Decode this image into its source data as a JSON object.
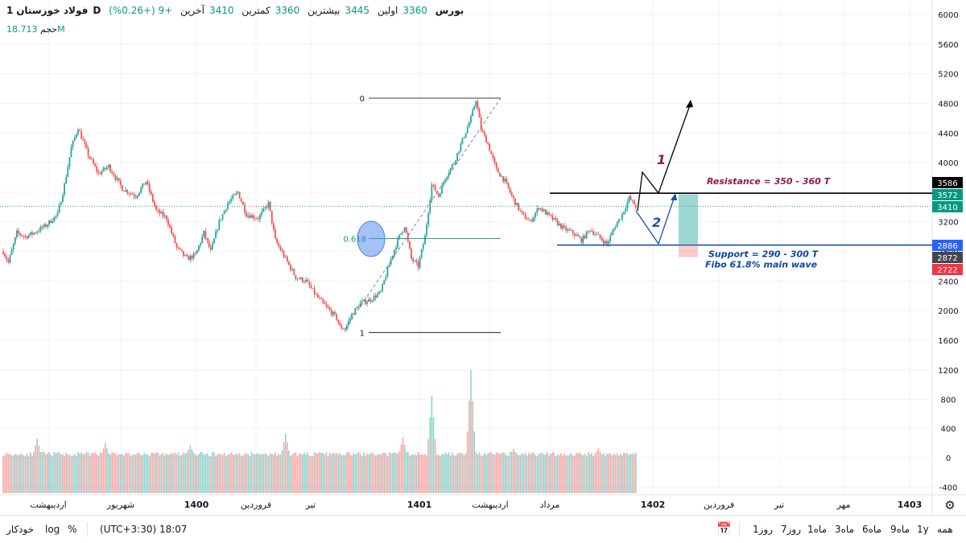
{
  "header": {
    "symbol": "فولاد خوزستان",
    "interval": "1D",
    "exchange": "بورس",
    "open_label": "اولین",
    "open_value": "3360",
    "high_label": "بیشترین",
    "high_value": "3445",
    "low_label": "کمترین",
    "low_value": "3360",
    "close_label": "آخرین",
    "close_value": "3410",
    "change": "+9 (+0.26%)",
    "volume_label": "حجم",
    "volume_value": "18.713M"
  },
  "chart_data": {
    "type": "candlestick",
    "price_axis": {
      "min": 1600,
      "max": 6200,
      "ticks": [
        1600,
        2000,
        2400,
        2800,
        3200,
        3600,
        4000,
        4400,
        4800,
        5200,
        5600,
        6000
      ]
    },
    "volume_axis": {
      "min": -400,
      "max": 1200,
      "ticks": [
        -400,
        0,
        400,
        800,
        1200
      ]
    },
    "time_labels": [
      "اردیبهشت",
      "شهریور",
      "1400",
      "فروردین",
      "تیر",
      "1401",
      "اردیبهشت",
      "مرداد",
      "1402",
      "فروردین",
      "تیر",
      "مهر",
      "1403"
    ],
    "price_trend": [
      [
        0,
        2800
      ],
      [
        3,
        2650
      ],
      [
        8,
        3050
      ],
      [
        13,
        3000
      ],
      [
        18,
        3050
      ],
      [
        25,
        3150
      ],
      [
        32,
        3300
      ],
      [
        36,
        3700
      ],
      [
        40,
        4200
      ],
      [
        44,
        4470
      ],
      [
        50,
        4100
      ],
      [
        56,
        3850
      ],
      [
        62,
        3950
      ],
      [
        70,
        3650
      ],
      [
        78,
        3550
      ],
      [
        84,
        3750
      ],
      [
        90,
        3350
      ],
      [
        96,
        3250
      ],
      [
        102,
        2850
      ],
      [
        108,
        2700
      ],
      [
        113,
        2750
      ],
      [
        118,
        3050
      ],
      [
        122,
        2800
      ],
      [
        127,
        3200
      ],
      [
        132,
        3450
      ],
      [
        138,
        3600
      ],
      [
        143,
        3300
      ],
      [
        150,
        3250
      ],
      [
        156,
        3450
      ],
      [
        160,
        2950
      ],
      [
        166,
        2700
      ],
      [
        172,
        2450
      ],
      [
        178,
        2400
      ],
      [
        184,
        2200
      ],
      [
        190,
        2050
      ],
      [
        196,
        1900
      ],
      [
        198,
        1780
      ],
      [
        201,
        1750
      ],
      [
        205,
        1950
      ],
      [
        210,
        2100
      ],
      [
        216,
        2150
      ],
      [
        222,
        2250
      ],
      [
        228,
        2700
      ],
      [
        232,
        2950
      ],
      [
        236,
        3150
      ],
      [
        240,
        2700
      ],
      [
        244,
        2600
      ],
      [
        248,
        3000
      ],
      [
        252,
        3700
      ],
      [
        256,
        3550
      ],
      [
        260,
        3800
      ],
      [
        265,
        4000
      ],
      [
        270,
        4300
      ],
      [
        275,
        4600
      ],
      [
        278,
        4850
      ],
      [
        281,
        4450
      ],
      [
        285,
        4250
      ],
      [
        290,
        3900
      ],
      [
        295,
        3750
      ],
      [
        300,
        3500
      ],
      [
        305,
        3300
      ],
      [
        310,
        3200
      ],
      [
        315,
        3400
      ],
      [
        320,
        3300
      ],
      [
        325,
        3200
      ],
      [
        330,
        3100
      ],
      [
        335,
        3050
      ],
      [
        340,
        2950
      ],
      [
        345,
        3100
      ],
      [
        350,
        3000
      ],
      [
        355,
        2900
      ],
      [
        360,
        3150
      ],
      [
        364,
        3300
      ],
      [
        368,
        3520
      ],
      [
        372,
        3410
      ]
    ],
    "volume_spikes": [
      [
        20,
        260
      ],
      [
        60,
        200
      ],
      [
        110,
        170
      ],
      [
        166,
        330
      ],
      [
        235,
        280
      ],
      [
        252,
        850
      ],
      [
        275,
        1200
      ],
      [
        300,
        120
      ],
      [
        350,
        130
      ]
    ],
    "fibonacci": {
      "levels": [
        {
          "label": "0",
          "price": 4870
        },
        {
          "label": "0.618",
          "price": 2975
        },
        {
          "label": "1",
          "price": 1705
        }
      ]
    },
    "resistance": {
      "label": "Resistance = 350 - 360 T",
      "price": 3586
    },
    "support": {
      "label": "Support = 290 - 300 T",
      "price": 2886
    },
    "fibo_note": "Fibo 61.8% main wave",
    "wave_labels": [
      "1",
      "2"
    ],
    "price_tags": [
      {
        "text": "3586",
        "price": 3586,
        "color": "#000000"
      },
      {
        "text": "3572",
        "price": 3572,
        "color": "#089981"
      },
      {
        "text": "3410",
        "price": 3410,
        "color": "#089981"
      },
      {
        "text": "2886",
        "price": 2886,
        "color": "#2962ff"
      },
      {
        "text": "2872",
        "price": 2872,
        "color": "#434651"
      },
      {
        "text": "2722",
        "price": 2722,
        "color": "#f23645"
      }
    ],
    "colors": {
      "up": "#26a69a",
      "down": "#ef5350",
      "fib": "#000000",
      "fib_mid": "#089981",
      "support": "#0d47a1",
      "resistance": "#000000",
      "annotation": "#8a1b4a",
      "arrow_blue": "#1e4fa8"
    }
  },
  "bottombar": {
    "ranges": [
      "همه",
      "1y",
      "9ماه",
      "6ماه",
      "3ماه",
      "1ماه",
      "7روز",
      "1روز"
    ],
    "time": "(UTC+3:30) 18:07",
    "percent": "%",
    "log": "log",
    "auto": "خودکار"
  }
}
